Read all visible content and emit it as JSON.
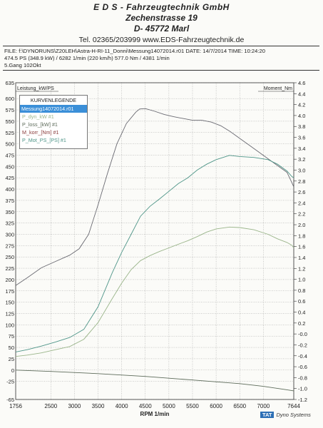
{
  "header": {
    "line1": "E D S - Fahrzeugtechnik GmbH",
    "line2": "Zechenstrasse 19",
    "line3": "D- 45772 Marl",
    "line4": "Tel. 02365/203999   www.EDS-Fahrzeugtechnik.de"
  },
  "info": {
    "line1": "FILE: f:\\DYNORUNS\\Z20LEH\\Astra-H-RI-11_Donni\\Messung14072014.r01   DATE: 14/7/2014   TIME: 10:24:20",
    "line2": "474.5 PS   (348.9 kW) / 6282 1/min (220 km/h)     577.0 Nm / 4381 1/min",
    "line3": "5.Gang  102Okt"
  },
  "legend": {
    "title": "KURVENLEGENDE",
    "selected": "Messung14072014.r01",
    "items": [
      "P_dyn_kW #1",
      "P_loss_[kW] #1",
      "M_korr_[Nm] #1",
      "P_Mot_PS_[PS] #1"
    ]
  },
  "brand": {
    "box": "TAT",
    "name": "Dyno Systems"
  },
  "colors": {
    "torque": "#6a6a72",
    "power_ps": "#4e9588",
    "power_kw": "#9ab58a",
    "loss": "#5d6b5a",
    "grid": "#9a9a9a",
    "legend_selected": "#3b8fd8"
  },
  "chart_data": {
    "type": "line",
    "xlabel": "RPM  1/min",
    "ylabel_left": "Leistung_kW/PS",
    "ylabel_right": "Moment_Nm",
    "xlim": [
      1756,
      7644
    ],
    "ylim_left": [
      -65,
      635
    ],
    "ylim_right": [
      -1.2,
      4.6
    ],
    "x_ticks": [
      "1756",
      "2500",
      "3000",
      "3500",
      "4000",
      "4500",
      "5000",
      "5500",
      "6000",
      "6500",
      "7000",
      "7644"
    ],
    "y_ticks_left": [
      "635",
      "600",
      "575",
      "550",
      "525",
      "500",
      "475",
      "450",
      "425",
      "400",
      "375",
      "350",
      "325",
      "300",
      "275",
      "250",
      "225",
      "200",
      "175",
      "150",
      "125",
      "100",
      "75",
      "50",
      "25",
      "0",
      "-25",
      "-65"
    ],
    "y_ticks_right": [
      "4.6",
      "4.4",
      "4.2",
      "4.0",
      "3.8",
      "3.6",
      "3.4",
      "3.2",
      "3.0",
      "2.8",
      "2.6",
      "2.4",
      "2.2",
      "2.0",
      "1.8",
      "1.6",
      "1.4",
      "1.2",
      "1.0",
      "0.8",
      "0.6",
      "0.4",
      "0.2",
      "-0.0",
      "-0.2",
      "-0.4",
      "-0.6",
      "-0.8",
      "-1.0",
      "-1.2"
    ],
    "grid": true,
    "legend_position": "top-left",
    "series": [
      {
        "name": "M_korr_[Nm] #1",
        "axis": "left",
        "points": [
          [
            1756,
            187
          ],
          [
            2000,
            204
          ],
          [
            2300,
            226
          ],
          [
            2600,
            240
          ],
          [
            2900,
            254
          ],
          [
            3100,
            268
          ],
          [
            3300,
            300
          ],
          [
            3500,
            365
          ],
          [
            3700,
            435
          ],
          [
            3900,
            500
          ],
          [
            4100,
            545
          ],
          [
            4300,
            570
          ],
          [
            4381,
            577
          ],
          [
            4500,
            578
          ],
          [
            4700,
            572
          ],
          [
            4900,
            565
          ],
          [
            5100,
            560
          ],
          [
            5300,
            556
          ],
          [
            5500,
            552
          ],
          [
            5700,
            552
          ],
          [
            5900,
            548
          ],
          [
            6100,
            540
          ],
          [
            6300,
            527
          ],
          [
            6500,
            512
          ],
          [
            6700,
            497
          ],
          [
            6900,
            482
          ],
          [
            7100,
            467
          ],
          [
            7300,
            452
          ],
          [
            7500,
            437
          ],
          [
            7600,
            415
          ],
          [
            7644,
            405
          ]
        ]
      },
      {
        "name": "P_Mot_PS_[PS] #1",
        "axis": "left",
        "points": [
          [
            1756,
            40
          ],
          [
            2000,
            45
          ],
          [
            2300,
            53
          ],
          [
            2600,
            62
          ],
          [
            2900,
            72
          ],
          [
            3200,
            90
          ],
          [
            3500,
            140
          ],
          [
            3800,
            215
          ],
          [
            4000,
            260
          ],
          [
            4200,
            300
          ],
          [
            4400,
            340
          ],
          [
            4600,
            362
          ],
          [
            4800,
            378
          ],
          [
            5000,
            395
          ],
          [
            5200,
            412
          ],
          [
            5400,
            425
          ],
          [
            5600,
            442
          ],
          [
            5800,
            455
          ],
          [
            6000,
            465
          ],
          [
            6282,
            474.5
          ],
          [
            6500,
            472
          ],
          [
            6800,
            470
          ],
          [
            7100,
            465
          ],
          [
            7300,
            455
          ],
          [
            7500,
            440
          ],
          [
            7600,
            428
          ],
          [
            7644,
            425
          ]
        ]
      },
      {
        "name": "P_dyn_kW #1",
        "axis": "left",
        "points": [
          [
            1756,
            30
          ],
          [
            2000,
            33
          ],
          [
            2300,
            38
          ],
          [
            2600,
            45
          ],
          [
            2900,
            52
          ],
          [
            3200,
            68
          ],
          [
            3500,
            105
          ],
          [
            3800,
            158
          ],
          [
            4000,
            192
          ],
          [
            4200,
            222
          ],
          [
            4400,
            242
          ],
          [
            4600,
            253
          ],
          [
            4800,
            262
          ],
          [
            5000,
            270
          ],
          [
            5200,
            278
          ],
          [
            5400,
            286
          ],
          [
            5600,
            295
          ],
          [
            5800,
            305
          ],
          [
            6000,
            312
          ],
          [
            6282,
            316
          ],
          [
            6500,
            315
          ],
          [
            6800,
            310
          ],
          [
            7100,
            300
          ],
          [
            7300,
            290
          ],
          [
            7500,
            282
          ],
          [
            7600,
            276
          ],
          [
            7644,
            270
          ]
        ]
      },
      {
        "name": "P_loss_[kW] #1",
        "axis": "left",
        "points": [
          [
            1756,
            0
          ],
          [
            2500,
            -3
          ],
          [
            3500,
            -8
          ],
          [
            4500,
            -14
          ],
          [
            5500,
            -22
          ],
          [
            6500,
            -30
          ],
          [
            7000,
            -36
          ],
          [
            7400,
            -42
          ],
          [
            7644,
            -46
          ]
        ]
      }
    ]
  }
}
